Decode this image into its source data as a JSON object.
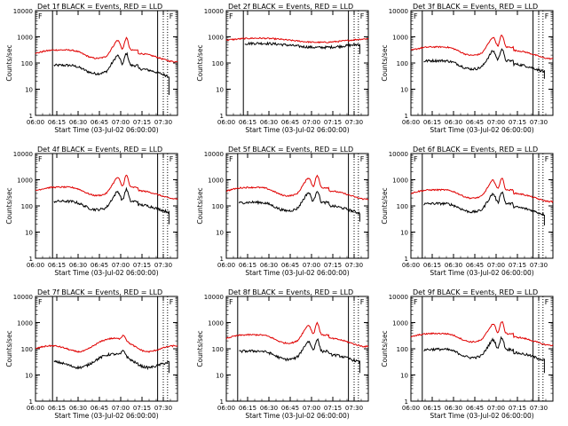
{
  "figure": {
    "xlabel": "Start Time (03-Jul-02 06:00:00)",
    "ylabel": "Counts/sec",
    "corner_marks": [
      "F",
      "F"
    ]
  },
  "colors": {
    "events": "#000000",
    "lld": "#e00000",
    "axis": "#000000"
  },
  "x_ticks": [
    "06:00",
    "06:15",
    "06:30",
    "06:45",
    "07:00",
    "07:15",
    "07:30"
  ],
  "y_ticks": [
    "1",
    "10",
    "100",
    "1000",
    "10000"
  ],
  "chart_data": [
    {
      "type": "line",
      "title": "Det 1f BLACK = Events, RED = LLD",
      "ylim": [
        1,
        10000
      ],
      "xlim_minutes": [
        0,
        100
      ],
      "vlines_solid": [
        12,
        86
      ],
      "vlines_dotted": [
        90,
        93
      ],
      "series": [
        {
          "name": "Events",
          "profile": "flare",
          "base": 60,
          "end": 6
        },
        {
          "name": "LLD",
          "profile": "flare_red",
          "base": 230
        }
      ]
    },
    {
      "type": "line",
      "title": "Det 2f BLACK = Events, RED = LLD",
      "ylim": [
        1,
        10000
      ],
      "xlim_minutes": [
        0,
        100
      ],
      "vlines_solid": [
        12,
        86
      ],
      "vlines_dotted": [
        90,
        93
      ],
      "series": [
        {
          "name": "Events",
          "profile": "flat",
          "base": 480,
          "end": 220
        },
        {
          "name": "LLD",
          "profile": "flat_red",
          "base": 750
        }
      ]
    },
    {
      "type": "line",
      "title": "Det 3f BLACK = Events, RED = LLD",
      "ylim": [
        1,
        10000
      ],
      "xlim_minutes": [
        0,
        100
      ],
      "vlines_solid": [
        8,
        86
      ],
      "vlines_dotted": [
        90,
        93
      ],
      "series": [
        {
          "name": "Events",
          "profile": "flare",
          "base": 90,
          "end": 25
        },
        {
          "name": "LLD",
          "profile": "flare_red",
          "base": 300
        }
      ]
    },
    {
      "type": "line",
      "title": "Det 4f BLACK = Events, RED = LLD",
      "ylim": [
        1,
        10000
      ],
      "xlim_minutes": [
        0,
        100
      ],
      "vlines_solid": [
        12,
        86
      ],
      "vlines_dotted": [
        90,
        93
      ],
      "series": [
        {
          "name": "Events",
          "profile": "flare",
          "base": 110,
          "end": 20
        },
        {
          "name": "LLD",
          "profile": "flare_red",
          "base": 380
        }
      ]
    },
    {
      "type": "line",
      "title": "Det 5f BLACK = Events, RED = LLD",
      "ylim": [
        1,
        10000
      ],
      "xlim_minutes": [
        0,
        100
      ],
      "vlines_solid": [
        8,
        86
      ],
      "vlines_dotted": [
        90,
        93
      ],
      "series": [
        {
          "name": "Events",
          "profile": "flare",
          "base": 100,
          "end": 25
        },
        {
          "name": "LLD",
          "profile": "flare_red",
          "base": 370
        }
      ]
    },
    {
      "type": "line",
      "title": "Det 6f BLACK = Events, RED = LLD",
      "ylim": [
        1,
        10000
      ],
      "xlim_minutes": [
        0,
        100
      ],
      "vlines_solid": [
        8,
        86
      ],
      "vlines_dotted": [
        90,
        93
      ],
      "series": [
        {
          "name": "Events",
          "profile": "flare",
          "base": 90,
          "end": 18
        },
        {
          "name": "LLD",
          "profile": "flare_red",
          "base": 300
        }
      ]
    },
    {
      "type": "line",
      "title": "Det 7f BLACK = Events, RED = LLD",
      "ylim": [
        1,
        10000
      ],
      "xlim_minutes": [
        0,
        100
      ],
      "vlines_solid": [
        12,
        86
      ],
      "vlines_dotted": [
        90,
        93
      ],
      "series": [
        {
          "name": "Events",
          "profile": "bump",
          "base": 25,
          "end": 12
        },
        {
          "name": "LLD",
          "profile": "bump_red",
          "base": 100
        }
      ]
    },
    {
      "type": "line",
      "title": "Det 8f BLACK = Events, RED = LLD",
      "ylim": [
        1,
        10000
      ],
      "xlim_minutes": [
        0,
        100
      ],
      "vlines_solid": [
        8,
        86
      ],
      "vlines_dotted": [
        90,
        93
      ],
      "series": [
        {
          "name": "Events",
          "profile": "flare",
          "base": 60,
          "end": 12
        },
        {
          "name": "LLD",
          "profile": "flare_red",
          "base": 250
        }
      ]
    },
    {
      "type": "line",
      "title": "Det 9f BLACK = Events, RED = LLD",
      "ylim": [
        1,
        10000
      ],
      "xlim_minutes": [
        0,
        100
      ],
      "vlines_solid": [
        8,
        86
      ],
      "vlines_dotted": [
        90,
        93
      ],
      "series": [
        {
          "name": "Events",
          "profile": "flare",
          "base": 70,
          "end": 12
        },
        {
          "name": "LLD",
          "profile": "flare_red",
          "base": 280
        }
      ]
    }
  ]
}
